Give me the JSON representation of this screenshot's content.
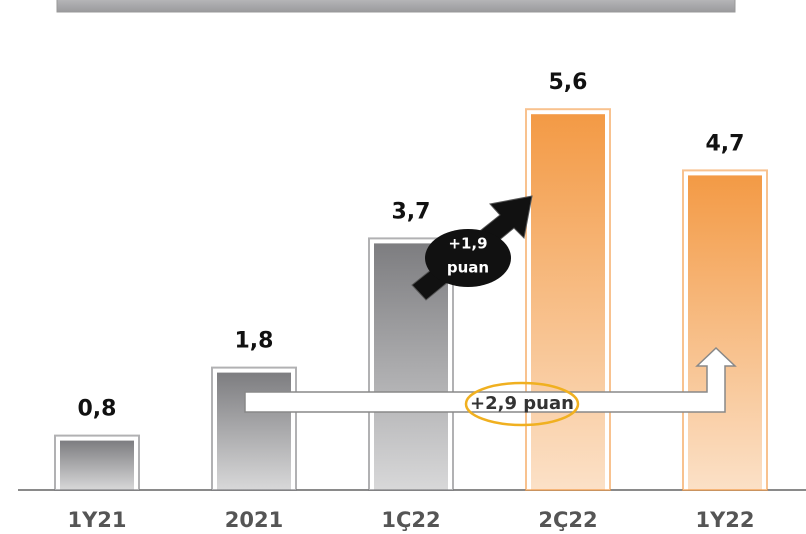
{
  "chart_data": {
    "type": "bar",
    "categories": [
      "1Y21",
      "2021",
      "1Ç22",
      "2Ç22",
      "1Y22"
    ],
    "values": [
      0.8,
      1.8,
      3.7,
      5.6,
      4.7
    ],
    "value_labels": [
      "0,8",
      "1,8",
      "3,7",
      "5,6",
      "4,7"
    ],
    "colors": [
      "#7d7d80",
      "#7d7d80",
      "#7d7d80",
      "#f39a45",
      "#f39a45"
    ],
    "annotations": [
      {
        "lines": [
          "+1,9",
          "puan"
        ]
      },
      {
        "text": "+2,9 puan"
      }
    ]
  }
}
